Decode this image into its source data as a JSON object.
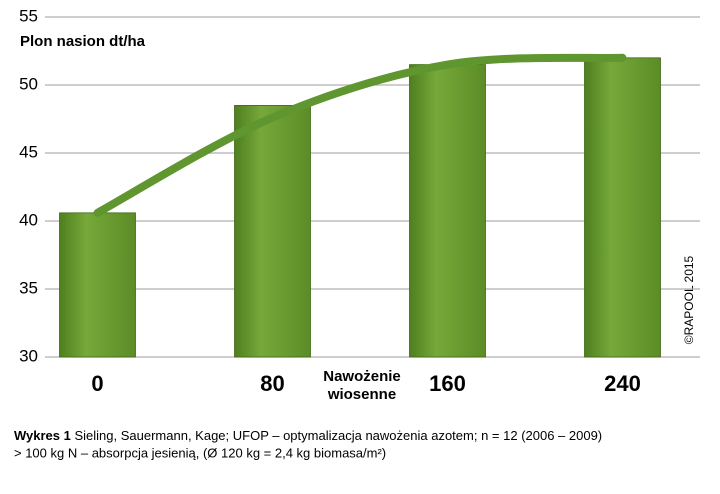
{
  "chart_data": {
    "type": "bar",
    "y_label": "Plon nasion dt/ha",
    "x_label": [
      "Nawożenie",
      "wiosenne"
    ],
    "categories": [
      "0",
      "80",
      "160",
      "240"
    ],
    "values": [
      40.6,
      48.5,
      51.5,
      52
    ],
    "color": "#6a9a2f",
    "trend": {
      "values": [
        40.6,
        47.6,
        51.5,
        52
      ],
      "color": "#5f9630"
    },
    "ylim": [
      30,
      55
    ],
    "yticks": [
      30,
      35,
      40,
      45,
      50,
      55
    ],
    "grid": true,
    "copyright": "©RAPOOL 2015",
    "caption": {
      "label": "Wykres 1",
      "line1": "Sieling, Sauermann, Kage; UFOP – optymalizacja nawożenia azotem; n = 12 (2006 – 2009)",
      "line2": "> 100 kg N – absorpcja jesienią, (Ø 120 kg = 2,4 kg biomasa/m²)"
    }
  }
}
